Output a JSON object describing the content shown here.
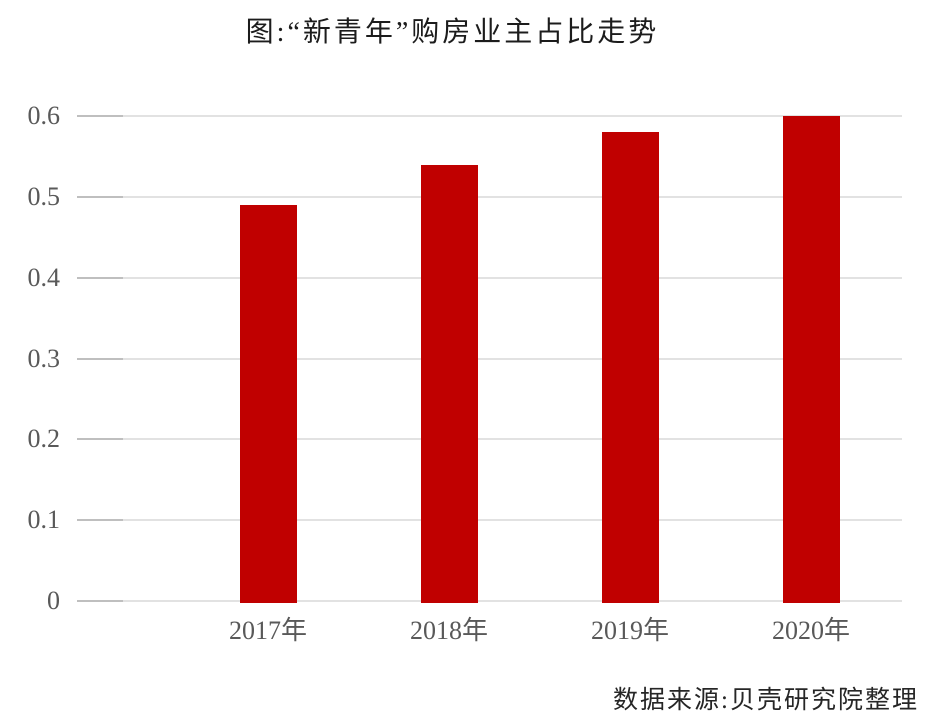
{
  "chart_data": {
    "type": "bar",
    "title": "图:“新青年”购房业主占比走势",
    "categories": [
      "2017年",
      "2018年",
      "2019年",
      "2020年"
    ],
    "values": [
      0.49,
      0.54,
      0.58,
      0.6
    ],
    "xlabel": "",
    "ylabel": "",
    "ylim": [
      0,
      0.6
    ],
    "yticks": [
      0,
      0.1,
      0.2,
      0.3,
      0.4,
      0.5,
      0.6
    ],
    "ytick_labels": [
      "0",
      "0.1",
      "0.2",
      "0.3",
      "0.4",
      "0.5",
      "0.6"
    ],
    "grid": true,
    "legend_position": "none",
    "bar_color": "#c00000",
    "gridline_color": "#e2e2e2",
    "tick_color": "#bfbfbf",
    "axis_text_color": "#595959",
    "title_color": "#1c1c1c"
  },
  "source": {
    "text": "数据来源:贝壳研究院整理"
  }
}
